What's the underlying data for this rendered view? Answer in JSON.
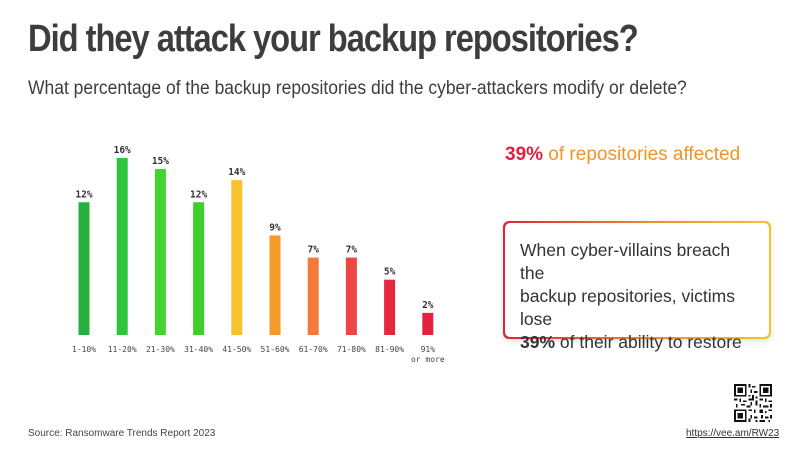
{
  "title": "Did they attack your backup repositories?",
  "subtitle": "What percentage of the backup repositories did the cyber-attackers modify or delete?",
  "highlight": {
    "percent": "39%",
    "text": " of repositories affected"
  },
  "callout": {
    "line1": "When cyber-villains breach the",
    "line2": "backup repositories, victims lose",
    "percent": "39%",
    "tail": " of their ability to restore"
  },
  "footer": {
    "source": "Source: Ransomware Trends Report 2023",
    "url": "https://vee.am/RW23"
  },
  "icons": {
    "qr": "qr-code-icon"
  },
  "chart_data": {
    "type": "bar",
    "categories": [
      "1-10%",
      "11-20%",
      "21-30%",
      "31-40%",
      "41-50%",
      "51-60%",
      "61-70%",
      "71-80%",
      "81-90%",
      "91% or more"
    ],
    "values": [
      12,
      16,
      15,
      12,
      14,
      9,
      7,
      7,
      5,
      2
    ],
    "value_labels": [
      "12%",
      "16%",
      "15%",
      "12%",
      "14%",
      "9%",
      "7%",
      "7%",
      "5%",
      "2%"
    ],
    "colors": [
      "#27b03e",
      "#2ec43c",
      "#42d52e",
      "#3fcf2a",
      "#f7c22c",
      "#f59a2b",
      "#f6793a",
      "#ee4545",
      "#e5283f",
      "#e8203f"
    ],
    "ylim": [
      0,
      16
    ]
  }
}
